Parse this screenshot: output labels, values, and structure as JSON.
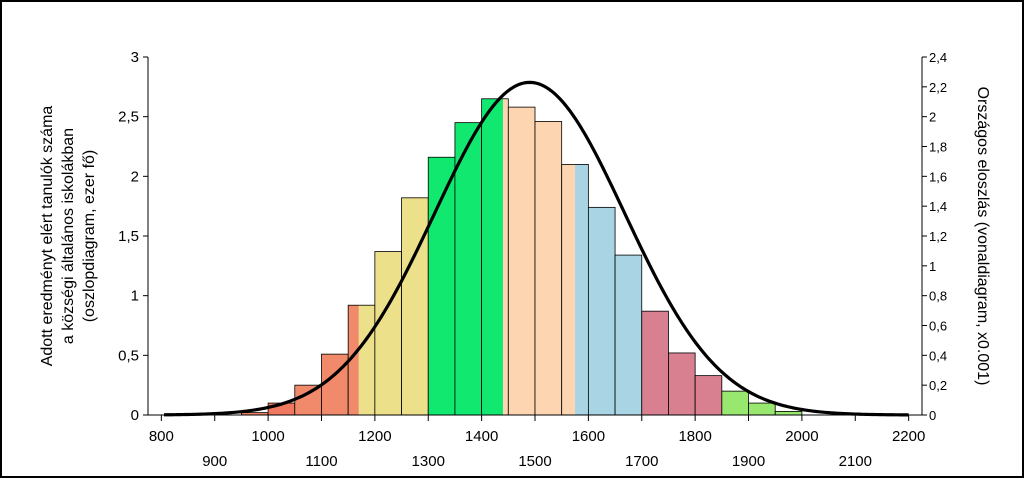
{
  "chart_data": {
    "type": "bar",
    "ylabel_lines": [
      "Adott eredményt elért tanulók száma",
      "a községi általános iskolákban",
      "(oszlopdiagram, ezer fő)"
    ],
    "y2label": "Országos eloszlás (vonaldiagram, x0.001)",
    "xlim": [
      775,
      2225
    ],
    "ylim": [
      0,
      3
    ],
    "y2lim": [
      0,
      2.4
    ],
    "x_ticks_top": [
      "800",
      "1000",
      "1200",
      "1400",
      "1600",
      "1800",
      "2000",
      "2200"
    ],
    "x_ticks_bottom": [
      "900",
      "1100",
      "1300",
      "1500",
      "1700",
      "1900",
      "2100"
    ],
    "y_ticks": [
      "0",
      "0,5",
      "1",
      "1,5",
      "2",
      "2,5",
      "3"
    ],
    "y2_ticks": [
      "0",
      "0,2",
      "0,4",
      "0,6",
      "0,8",
      "1",
      "1,2",
      "1,4",
      "1,6",
      "1,8",
      "2",
      "2,2",
      "2,4"
    ],
    "bar_width": 50,
    "bars": [
      {
        "x": 825,
        "value": 0.0,
        "color": "#e8d98a"
      },
      {
        "x": 875,
        "value": 0.0,
        "color": "#e8d98a"
      },
      {
        "x": 925,
        "value": 0.0,
        "color": "#e8d98a"
      },
      {
        "x": 975,
        "value": 0.02,
        "color": "#f08060"
      },
      {
        "x": 1025,
        "value": 0.1,
        "color": "#f07860"
      },
      {
        "x": 1075,
        "value": 0.25,
        "color": "#f08a6a"
      },
      {
        "x": 1125,
        "value": 0.51,
        "color": "#f08a6a"
      },
      {
        "x": 1175,
        "value": 0.92,
        "color": "#f08a6a",
        "split_color": "#ede08a",
        "split_at": 1170
      },
      {
        "x": 1225,
        "value": 1.37,
        "color": "#ede08a"
      },
      {
        "x": 1275,
        "value": 1.82,
        "color": "#ede08a"
      },
      {
        "x": 1325,
        "value": 2.16,
        "color": "#10e870"
      },
      {
        "x": 1375,
        "value": 2.45,
        "color": "#10e870"
      },
      {
        "x": 1425,
        "value": 2.65,
        "color": "#10e870",
        "split_color": "#fdd5b1",
        "split_at": 1440
      },
      {
        "x": 1475,
        "value": 2.58,
        "color": "#fdd5b1"
      },
      {
        "x": 1525,
        "value": 2.46,
        "color": "#fdd5b1"
      },
      {
        "x": 1575,
        "value": 2.1,
        "color": "#fdd5b1",
        "split_color": "#a8d4e4",
        "split_at": 1575
      },
      {
        "x": 1625,
        "value": 1.74,
        "color": "#a8d4e4"
      },
      {
        "x": 1675,
        "value": 1.34,
        "color": "#a8d4e4"
      },
      {
        "x": 1725,
        "value": 0.87,
        "color": "#d8808f"
      },
      {
        "x": 1775,
        "value": 0.52,
        "color": "#d8808f"
      },
      {
        "x": 1825,
        "value": 0.33,
        "color": "#d8808f"
      },
      {
        "x": 1875,
        "value": 0.2,
        "color": "#98e870"
      },
      {
        "x": 1925,
        "value": 0.1,
        "color": "#98e870"
      },
      {
        "x": 1975,
        "value": 0.03,
        "color": "#98e870"
      },
      {
        "x": 2025,
        "value": 0.0,
        "color": "#98e870"
      },
      {
        "x": 2075,
        "value": 0.0,
        "color": "#98e870"
      },
      {
        "x": 2125,
        "value": 0.0,
        "color": "#98e870"
      },
      {
        "x": 2175,
        "value": 0.0,
        "color": "#98e870"
      }
    ],
    "curve": {
      "mean": 1490,
      "sd": 178,
      "peak": 2.23,
      "color": "#000000"
    },
    "grid": false
  }
}
